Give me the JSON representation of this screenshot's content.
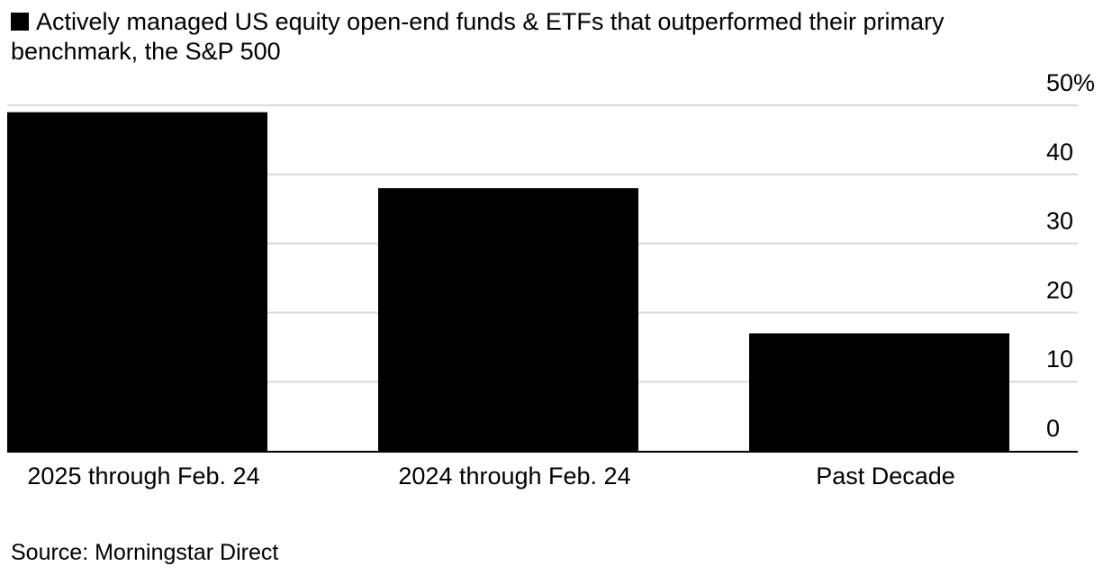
{
  "legend": {
    "label": "Actively managed US equity open-end funds & ETFs that outperformed their primary benchmark, the S&P 500",
    "color": "#000000"
  },
  "source": "Source: Morningstar Direct",
  "chart_data": {
    "type": "bar",
    "categories": [
      "2025 through Feb. 24",
      "2024 through Feb. 24",
      "Past Decade"
    ],
    "series": [
      {
        "name": "Actively managed US equity open-end funds & ETFs that outperformed their primary benchmark, the S&P 500",
        "values": [
          49,
          38,
          17
        ]
      }
    ],
    "ylim": [
      0,
      50
    ],
    "yticks": [
      0,
      10,
      20,
      30,
      40,
      50
    ],
    "ytick_labels": [
      "0",
      "10",
      "20",
      "30",
      "40",
      "50%"
    ],
    "y_axis_side": "right",
    "grid": true,
    "legend_position": "top-left",
    "bar_color": "#000000",
    "grid_color": "#d9d9d9"
  }
}
